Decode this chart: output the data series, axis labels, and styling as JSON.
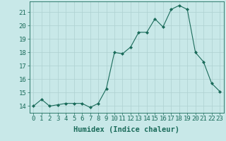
{
  "x": [
    0,
    1,
    2,
    3,
    4,
    5,
    6,
    7,
    8,
    9,
    10,
    11,
    12,
    13,
    14,
    15,
    16,
    17,
    18,
    19,
    20,
    21,
    22,
    23
  ],
  "y": [
    14.0,
    14.5,
    14.0,
    14.1,
    14.2,
    14.2,
    14.2,
    13.9,
    14.2,
    15.3,
    18.0,
    17.9,
    18.4,
    19.5,
    19.5,
    20.5,
    19.9,
    21.2,
    21.5,
    21.2,
    18.0,
    17.3,
    15.7,
    15.1
  ],
  "xlabel": "Humidex (Indice chaleur)",
  "xlim": [
    -0.5,
    23.5
  ],
  "ylim": [
    13.5,
    21.8
  ],
  "yticks": [
    14,
    15,
    16,
    17,
    18,
    19,
    20,
    21
  ],
  "xticks": [
    0,
    1,
    2,
    3,
    4,
    5,
    6,
    7,
    8,
    9,
    10,
    11,
    12,
    13,
    14,
    15,
    16,
    17,
    18,
    19,
    20,
    21,
    22,
    23
  ],
  "line_color": "#1a6b5a",
  "marker_color": "#1a6b5a",
  "bg_color": "#c8e8e8",
  "grid_color": "#aed0d0",
  "axis_color": "#1a6b5a",
  "label_color": "#1a6b5a",
  "tick_fontsize": 6.5,
  "xlabel_fontsize": 7.5
}
